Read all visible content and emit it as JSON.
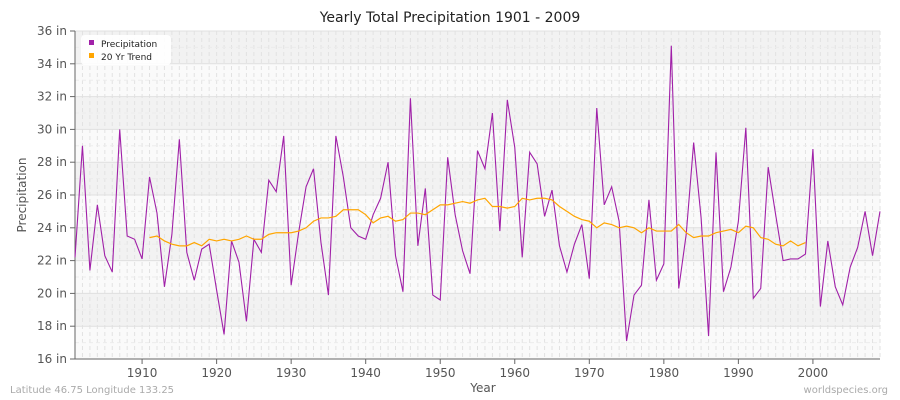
{
  "chart_data": {
    "type": "line",
    "title": "Yearly Total Precipitation 1901 - 2009",
    "xlabel": "Year",
    "ylabel": "Precipitation",
    "ylim": [
      16,
      36
    ],
    "xlim": [
      1901,
      2009
    ],
    "yticks": [
      "16 in",
      "18 in",
      "20 in",
      "22 in",
      "24 in",
      "26 in",
      "28 in",
      "30 in",
      "32 in",
      "34 in",
      "36 in"
    ],
    "xticks": [
      "1910",
      "1920",
      "1930",
      "1940",
      "1950",
      "1960",
      "1970",
      "1980",
      "1990",
      "2000"
    ],
    "grid": true,
    "legend_position": "top-left",
    "series": [
      {
        "name": "Precipitation",
        "color": "#a020a8",
        "start_year": 1901,
        "values": [
          22.2,
          29.0,
          21.4,
          25.4,
          22.3,
          21.3,
          30.0,
          23.5,
          23.3,
          22.1,
          27.1,
          24.9,
          20.4,
          23.6,
          29.4,
          22.5,
          20.8,
          22.7,
          23.0,
          20.2,
          17.5,
          23.2,
          21.9,
          18.3,
          23.3,
          22.5,
          26.9,
          26.2,
          29.6,
          20.5,
          23.7,
          26.5,
          27.6,
          23.1,
          19.9,
          29.6,
          27.1,
          24.0,
          23.5,
          23.3,
          24.8,
          25.8,
          28.0,
          22.3,
          20.1,
          31.9,
          22.9,
          26.4,
          19.9,
          19.6,
          28.3,
          24.8,
          22.6,
          21.2,
          28.7,
          27.6,
          31.0,
          23.8,
          31.8,
          28.9,
          22.2,
          28.6,
          27.9,
          24.7,
          26.3,
          22.9,
          21.3,
          23.0,
          24.2,
          20.9,
          31.3,
          25.4,
          26.5,
          24.4,
          17.1,
          19.9,
          20.5,
          25.7,
          20.8,
          21.8,
          35.1,
          20.3,
          23.6,
          29.2,
          24.6,
          17.4,
          28.6,
          20.1,
          21.6,
          24.4,
          30.1,
          19.7,
          20.3,
          27.7,
          24.8,
          22.0,
          22.1,
          22.1,
          22.4,
          28.8,
          19.2,
          23.2,
          20.4,
          19.3,
          21.6,
          22.8,
          25.0,
          22.3,
          25.0
        ]
      },
      {
        "name": "20 Yr Trend",
        "color": "#ffa500",
        "start_year": 1911,
        "values": [
          23.4,
          23.5,
          23.2,
          23.0,
          22.9,
          22.9,
          23.1,
          22.9,
          23.3,
          23.2,
          23.3,
          23.2,
          23.3,
          23.5,
          23.3,
          23.3,
          23.6,
          23.7,
          23.7,
          23.7,
          23.8,
          24.0,
          24.4,
          24.6,
          24.6,
          24.7,
          25.1,
          25.1,
          25.1,
          24.8,
          24.3,
          24.6,
          24.7,
          24.4,
          24.5,
          24.9,
          24.9,
          24.8,
          25.1,
          25.4,
          25.4,
          25.5,
          25.6,
          25.5,
          25.7,
          25.8,
          25.3,
          25.3,
          25.2,
          25.3,
          25.8,
          25.7,
          25.8,
          25.8,
          25.7,
          25.3,
          25.0,
          24.7,
          24.5,
          24.4,
          24.0,
          24.3,
          24.2,
          24.0,
          24.1,
          24.0,
          23.7,
          24.0,
          23.8,
          23.8,
          23.8,
          24.2,
          23.7,
          23.4,
          23.5,
          23.5,
          23.7,
          23.8,
          23.9,
          23.7,
          24.1,
          24.0,
          23.4,
          23.3,
          23.0,
          22.9,
          23.2,
          22.9,
          23.1
        ]
      }
    ]
  },
  "footer": {
    "location": "Latitude 46.75 Longitude 133.25",
    "site": "worldspecies.org"
  }
}
